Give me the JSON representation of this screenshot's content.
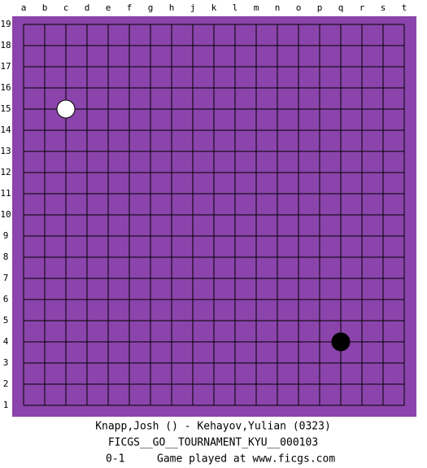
{
  "columns": [
    "a",
    "b",
    "c",
    "d",
    "e",
    "f",
    "g",
    "h",
    "j",
    "k",
    "l",
    "m",
    "n",
    "o",
    "p",
    "q",
    "r",
    "s",
    "t"
  ],
  "rows": [
    19,
    18,
    17,
    16,
    15,
    14,
    13,
    12,
    11,
    10,
    9,
    8,
    7,
    6,
    5,
    4,
    3,
    2,
    1
  ],
  "stones": [
    {
      "color": "white",
      "column": "c",
      "row": 15
    },
    {
      "color": "black",
      "column": "q",
      "row": 4
    }
  ],
  "caption": {
    "players": "Knapp,Josh () - Kehayov,Yulian (0323)",
    "event": "FICGS__GO__TOURNAMENT_KYU__000103",
    "result": "0-1",
    "site": "Game played at www.ficgs.com"
  }
}
